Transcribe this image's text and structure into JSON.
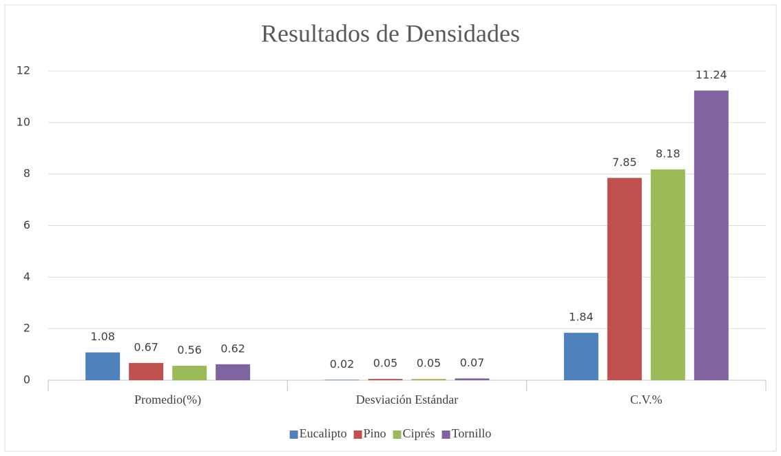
{
  "chart_data": {
    "type": "bar",
    "title": "Resultados de Densidades",
    "categories": [
      "Promedio(%)",
      "Desviación Estándar",
      "C.V.%"
    ],
    "series": [
      {
        "name": "Eucalipto",
        "color": "#4f81bd",
        "values": [
          1.08,
          0.02,
          1.84
        ]
      },
      {
        "name": "Pino",
        "color": "#c0504d",
        "values": [
          0.67,
          0.05,
          7.85
        ]
      },
      {
        "name": "Ciprés",
        "color": "#9bbb59",
        "values": [
          0.56,
          0.05,
          8.18
        ]
      },
      {
        "name": "Tornillo",
        "color": "#8064a2",
        "values": [
          0.62,
          0.07,
          11.24
        ]
      }
    ],
    "ylim": [
      0,
      12
    ],
    "yticks": [
      0,
      2,
      4,
      6,
      8,
      10,
      12
    ],
    "grid": true,
    "legend": "bottom"
  }
}
